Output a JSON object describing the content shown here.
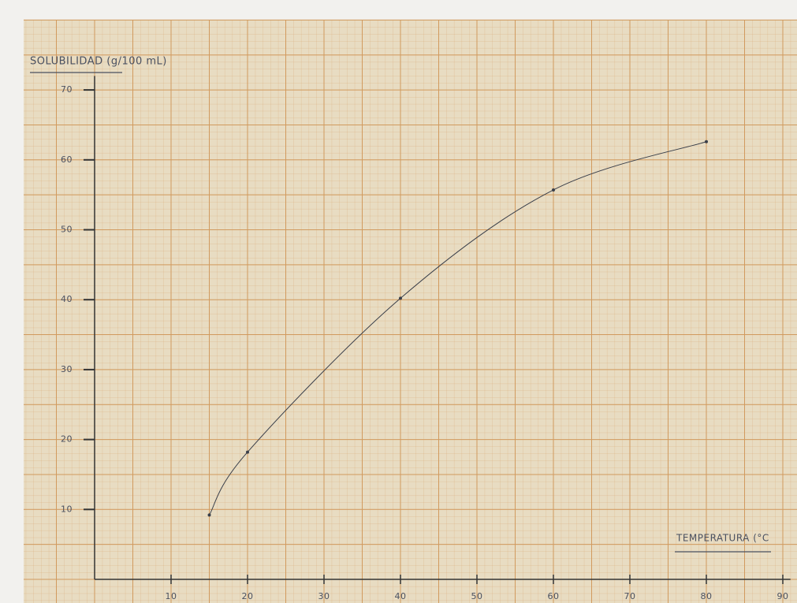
{
  "chart_data": {
    "type": "line",
    "y_label": "SOLUBILIDAD (g/100 mL)",
    "x_label": "TEMPERATURA (°C",
    "x": [
      15,
      20,
      40,
      60,
      80
    ],
    "series": [
      {
        "values": [
          9.2,
          18.2,
          40.2,
          55.7,
          62.6
        ],
        "color": "#3a3f4a"
      }
    ],
    "xlim": [
      0,
      91
    ],
    "ylim": [
      0,
      72
    ],
    "xticks": [
      10,
      20,
      30,
      40,
      50,
      60,
      70,
      80,
      90
    ],
    "yticks": [
      10,
      20,
      30,
      40,
      50,
      60,
      70
    ],
    "grid": true
  }
}
